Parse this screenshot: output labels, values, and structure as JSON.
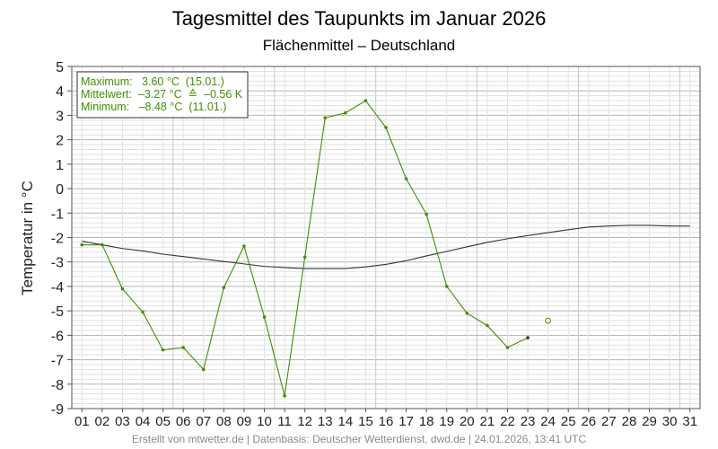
{
  "chart_data": {
    "type": "line",
    "title": "Tagesmittel des Taupunkts im Januar 2026",
    "subtitle": "Flächenmittel – Deutschland",
    "ylabel": "Temperatur in °C",
    "ylim": [
      -9,
      5
    ],
    "yticks": [
      "5",
      "4",
      "3",
      "2",
      "1",
      "0",
      "-1",
      "-2",
      "-3",
      "-4",
      "-5",
      "-6",
      "-7",
      "-8",
      "-9"
    ],
    "ytick_values": [
      5,
      4,
      3,
      2,
      1,
      0,
      -1,
      -2,
      -3,
      -4,
      -5,
      -6,
      -7,
      -8,
      -9
    ],
    "categories": [
      "01",
      "02",
      "03",
      "04",
      "05",
      "06",
      "07",
      "08",
      "09",
      "10",
      "11",
      "12",
      "13",
      "14",
      "15",
      "16",
      "17",
      "18",
      "19",
      "20",
      "21",
      "22",
      "23",
      "24",
      "25",
      "26",
      "27",
      "28",
      "29",
      "30",
      "31"
    ],
    "grid": true,
    "series": [
      {
        "color": "#3f8f00",
        "values": [
          -2.3,
          -2.3,
          -4.1,
          -5.05,
          -6.6,
          -6.5,
          -7.4,
          -4.05,
          -2.35,
          -5.25,
          -8.48,
          -2.8,
          2.9,
          3.1,
          3.6,
          2.5,
          0.4,
          -1.05,
          -4.0,
          -5.1,
          -5.6,
          -6.5,
          -6.1,
          null,
          null,
          null,
          null,
          null,
          null,
          null,
          null
        ]
      },
      {
        "color": "#333333",
        "values": [
          -2.15,
          -2.3,
          -2.45,
          -2.55,
          -2.68,
          -2.78,
          -2.88,
          -2.98,
          -3.08,
          -3.18,
          -3.23,
          -3.27,
          -3.27,
          -3.27,
          -3.2,
          -3.1,
          -2.95,
          -2.75,
          -2.57,
          -2.38,
          -2.2,
          -2.05,
          -1.92,
          -1.8,
          -1.68,
          -1.57,
          -1.53,
          -1.5,
          -1.5,
          -1.53,
          -1.53
        ]
      }
    ],
    "open_marker": {
      "day": "24",
      "value": -5.4,
      "color": "#3f8f00"
    },
    "last_point_color": "#333333",
    "legend": {
      "placement": "top-left",
      "lines": [
        "Maximum:   3.60 °C  (15.01.)",
        "Mittelwert:  –3.27 °C  ≙  –0.56 K",
        "Minimum:   –8.48 °C  (11.01.)"
      ]
    },
    "footer": "Erstellt von mtwetter.de | Datenbasis: Deutscher Wetterdienst, dwd.de | 24.01.2026, 13:41 UTC"
  }
}
